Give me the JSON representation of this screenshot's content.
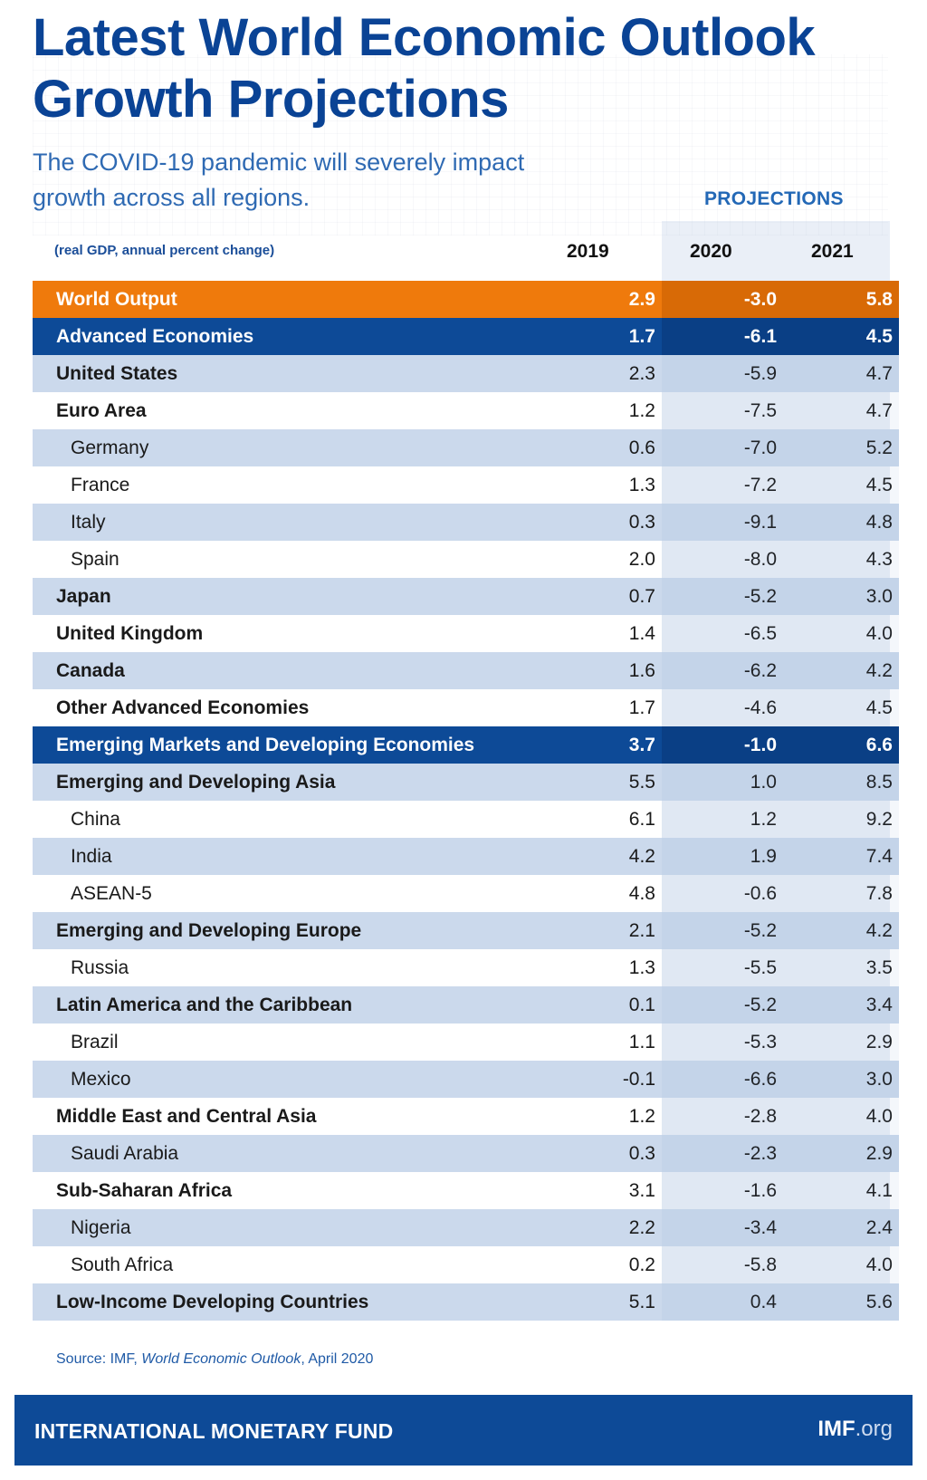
{
  "title_line1": "Latest World Economic Outlook",
  "title_line2": "Growth Projections",
  "subtitle_line1": "The COVID-19 pandemic will severely impact",
  "subtitle_line2": "growth across all regions.",
  "projections_label": "PROJECTIONS",
  "unit_label": "(real GDP, annual percent change)",
  "source": {
    "prefix": "Source: IMF, ",
    "publication": "World Economic Outlook",
    "suffix": ", April 2020"
  },
  "footer": {
    "org": "INTERNATIONAL MONETARY FUND",
    "site_bold": "IMF",
    "site_rest": ".org"
  },
  "colors": {
    "brand_blue": "#0d4a97",
    "world_orange": "#ef7a0c",
    "row_shade": "#cbd9ec"
  },
  "chart_data": {
    "type": "table",
    "columns": [
      "2019",
      "2020",
      "2021"
    ],
    "rows": [
      {
        "name": "World Output",
        "style": "world",
        "values": [
          "2.9",
          "-3.0",
          "5.8"
        ]
      },
      {
        "name": "Advanced Economies",
        "style": "band",
        "values": [
          "1.7",
          "-6.1",
          "4.5"
        ]
      },
      {
        "name": "United States",
        "style": "main",
        "values": [
          "2.3",
          "-5.9",
          "4.7"
        ]
      },
      {
        "name": "Euro Area",
        "style": "main",
        "values": [
          "1.2",
          "-7.5",
          "4.7"
        ]
      },
      {
        "name": "Germany",
        "style": "sub",
        "values": [
          "0.6",
          "-7.0",
          "5.2"
        ]
      },
      {
        "name": "France",
        "style": "sub",
        "values": [
          "1.3",
          "-7.2",
          "4.5"
        ]
      },
      {
        "name": "Italy",
        "style": "sub",
        "values": [
          "0.3",
          "-9.1",
          "4.8"
        ]
      },
      {
        "name": "Spain",
        "style": "sub",
        "values": [
          "2.0",
          "-8.0",
          "4.3"
        ]
      },
      {
        "name": "Japan",
        "style": "main",
        "values": [
          "0.7",
          "-5.2",
          "3.0"
        ]
      },
      {
        "name": "United Kingdom",
        "style": "main",
        "values": [
          "1.4",
          "-6.5",
          "4.0"
        ]
      },
      {
        "name": "Canada",
        "style": "main",
        "values": [
          "1.6",
          "-6.2",
          "4.2"
        ]
      },
      {
        "name": "Other Advanced Economies",
        "style": "main",
        "values": [
          "1.7",
          "-4.6",
          "4.5"
        ]
      },
      {
        "name": "Emerging Markets and Developing Economies",
        "style": "band",
        "values": [
          "3.7",
          "-1.0",
          "6.6"
        ]
      },
      {
        "name": "Emerging and Developing Asia",
        "style": "main",
        "values": [
          "5.5",
          "1.0",
          "8.5"
        ]
      },
      {
        "name": "China",
        "style": "sub",
        "values": [
          "6.1",
          "1.2",
          "9.2"
        ]
      },
      {
        "name": "India",
        "style": "sub",
        "values": [
          "4.2",
          "1.9",
          "7.4"
        ]
      },
      {
        "name": "ASEAN-5",
        "style": "sub",
        "values": [
          "4.8",
          "-0.6",
          "7.8"
        ]
      },
      {
        "name": "Emerging and Developing Europe",
        "style": "main",
        "values": [
          "2.1",
          "-5.2",
          "4.2"
        ]
      },
      {
        "name": "Russia",
        "style": "sub",
        "values": [
          "1.3",
          "-5.5",
          "3.5"
        ]
      },
      {
        "name": "Latin America and the Caribbean",
        "style": "main",
        "values": [
          "0.1",
          "-5.2",
          "3.4"
        ]
      },
      {
        "name": "Brazil",
        "style": "sub",
        "values": [
          "1.1",
          "-5.3",
          "2.9"
        ]
      },
      {
        "name": "Mexico",
        "style": "sub",
        "values": [
          "-0.1",
          "-6.6",
          "3.0"
        ]
      },
      {
        "name": "Middle East and Central Asia",
        "style": "main",
        "values": [
          "1.2",
          "-2.8",
          "4.0"
        ]
      },
      {
        "name": "Saudi Arabia",
        "style": "sub",
        "values": [
          "0.3",
          "-2.3",
          "2.9"
        ]
      },
      {
        "name": "Sub-Saharan Africa",
        "style": "main",
        "values": [
          "3.1",
          "-1.6",
          "4.1"
        ]
      },
      {
        "name": "Nigeria",
        "style": "sub",
        "values": [
          "2.2",
          "-3.4",
          "2.4"
        ]
      },
      {
        "name": "South Africa",
        "style": "sub",
        "values": [
          "0.2",
          "-5.8",
          "4.0"
        ]
      },
      {
        "name": "Low-Income Developing Countries",
        "style": "main",
        "values": [
          "5.1",
          "0.4",
          "5.6"
        ]
      }
    ]
  }
}
